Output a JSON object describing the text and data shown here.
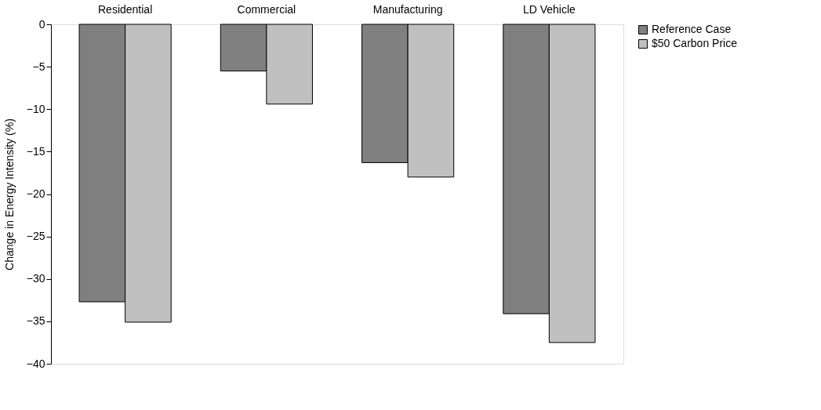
{
  "chart_data": {
    "type": "bar",
    "ylabel": "Change in Energy Intensity (%)",
    "categories": [
      "Residential",
      "Commercial",
      "Manufacturing",
      "LD Vehicle"
    ],
    "series": [
      {
        "name": "Reference Case",
        "color": "#808080",
        "values": [
          -32.7,
          -5.5,
          -16.3,
          -34.1
        ]
      },
      {
        "name": "$50 Carbon Price",
        "color": "#c0c0c0",
        "values": [
          -35.1,
          -9.4,
          -18.0,
          -37.5
        ]
      }
    ],
    "ylim": [
      -40,
      0
    ],
    "yticks": [
      0,
      -5,
      -10,
      -15,
      -20,
      -25,
      -30,
      -35,
      -40
    ],
    "grid": false,
    "legend": "right"
  }
}
